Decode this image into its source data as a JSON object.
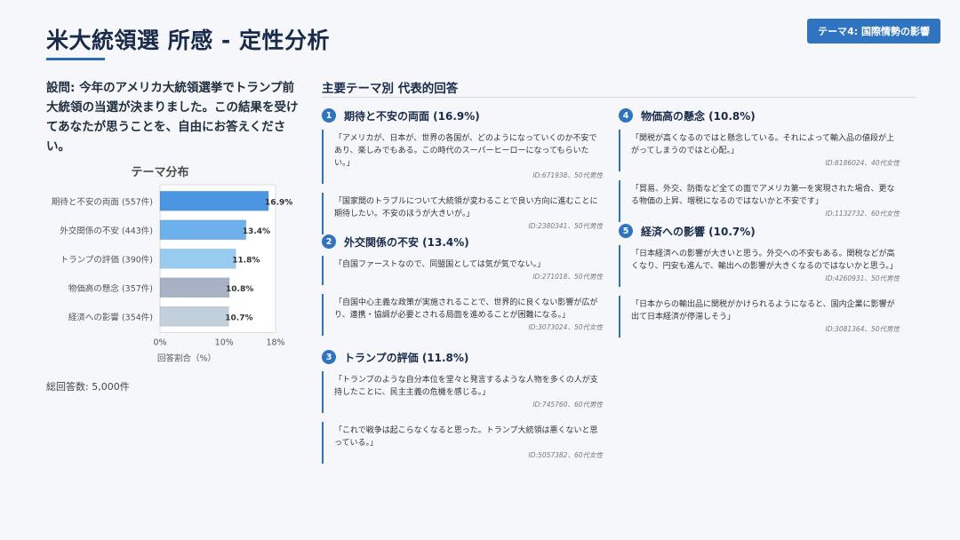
{
  "header": {
    "title": "米大統領選 所感 - 定性分析",
    "badge": "テーマ4: 国際情勢の影響"
  },
  "question": "設問: 今年のアメリカ大統領選挙でトランプ前大統領の当選が決まりました。この結果を受けてあなたが思うことを、自由にお答えください。",
  "chart_data": {
    "type": "bar",
    "orientation": "horizontal",
    "title": "テーマ分布",
    "categories": [
      "期待と不安の両面 (557件)",
      "外交関係の不安 (443件)",
      "トランプの評価 (390件)",
      "物価高の懸念 (357件)",
      "経済への影響 (354件)"
    ],
    "values": [
      16.9,
      13.4,
      11.8,
      10.8,
      10.7
    ],
    "value_labels": [
      "16.9%",
      "13.4%",
      "11.8%",
      "10.8%",
      "10.7%"
    ],
    "colors": [
      "#4a96e0",
      "#6db0ea",
      "#97cbf0",
      "#a7b3c4",
      "#c2cfdc"
    ],
    "xlabel": "回答割合（%）",
    "xlim": [
      0,
      18
    ],
    "xticks": [
      "0%",
      "10%",
      "18%"
    ],
    "grid": false
  },
  "total": "総回答数: 5,000件",
  "section_title": "主要テーマ別 代表的回答",
  "themes": [
    {
      "num": "1",
      "title": "期待と不安の両面 (16.9%)",
      "quotes": [
        {
          "text": "「アメリカが、日本が、世界の各国が、どのようになっていくのか不安であり、楽しみでもある。この時代のスーパーヒーローになってもらいたい。」",
          "id": "ID:671938、50代男性"
        },
        {
          "text": "「国家間のトラブルについて大統領が変わることで良い方向に進むことに期待したい。不安のほうが大きいが。」",
          "id": "ID:2380341、50代男性"
        }
      ]
    },
    {
      "num": "2",
      "title": "外交関係の不安 (13.4%)",
      "quotes": [
        {
          "text": "「自国ファーストなので、同盟国としては気が気でない。」",
          "id": "ID:271018、50代男性"
        },
        {
          "text": "「自国中心主義な政策が実施されることで、世界的に良くない影響が広がり、連携・協調が必要とされる局面を進めることが困難になる。」",
          "id": "ID:3073024、50代女性"
        }
      ]
    },
    {
      "num": "3",
      "title": "トランプの評価 (11.8%)",
      "quotes": [
        {
          "text": "「トランプのような自分本位を堂々と発言するような人物を多くの人が支持したことに、民主主義の危機を感じる。」",
          "id": "ID:745760、60代男性"
        },
        {
          "text": "「これで戦争は起こらなくなると思った。トランプ大統領は悪くないと思っている。」",
          "id": "ID:5057382、60代女性"
        }
      ]
    },
    {
      "num": "4",
      "title": "物価高の懸念 (10.8%)",
      "quotes": [
        {
          "text": "「関税が高くなるのではと懸念している。それによって輸入品の値段が上がってしまうのではと心配。」",
          "id": "ID:8186024、40代女性"
        },
        {
          "text": "「貿易、外交、防衛など全ての面でアメリカ第一を実現された場合、更なる物価の上昇、増税になるのではないかと不安です」",
          "id": "ID:1132732、60代女性"
        }
      ]
    },
    {
      "num": "5",
      "title": "経済への影響 (10.7%)",
      "quotes": [
        {
          "text": "「日本経済への影響が大きいと思う。外交への不安もある。関税などが高くなり、円安も進んで、輸出への影響が大きくなるのではないかと思う。」",
          "id": "ID:4260931、50代男性"
        },
        {
          "text": "「日本からの輸出品に関税がかけられるようになると、国内企業に影響が出て日本経済が停滞しそう」",
          "id": "ID:3081364、50代男性"
        }
      ]
    }
  ]
}
